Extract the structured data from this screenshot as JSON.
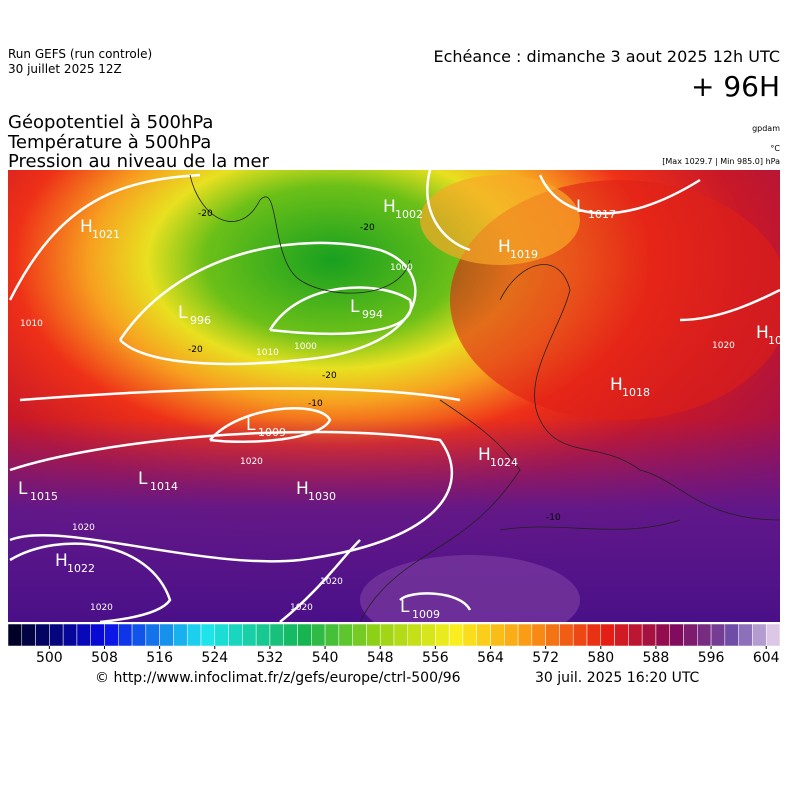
{
  "header": {
    "run": "Run GEFS (run controle)",
    "run_date": "30 juillet 2025 12Z",
    "echeance": "Echéance : dimanche 3 aout 2025 12h UTC",
    "lead": "+ 96H",
    "layers": [
      "Géopotentiel à 500hPa",
      "Température à 500hPa",
      "Pression au niveau de la mer"
    ],
    "unit_geo": "gpdam",
    "unit_temp": "°C",
    "extremes": "[Max 1029.7 | Min 985.0] hPa"
  },
  "centers": [
    {
      "letter": "H",
      "value": "1021"
    },
    {
      "letter": "H",
      "value": "1002"
    },
    {
      "letter": "L",
      "value": "1017"
    },
    {
      "letter": "H",
      "value": "1019"
    },
    {
      "letter": "L",
      "value": "996"
    },
    {
      "letter": "L",
      "value": "994"
    },
    {
      "letter": "H",
      "value": "1018"
    },
    {
      "letter": "L",
      "value": "1009"
    },
    {
      "letter": "L",
      "value": "1014"
    },
    {
      "letter": "L",
      "value": "1015"
    },
    {
      "letter": "H",
      "value": "1030"
    },
    {
      "letter": "H",
      "value": "1024"
    },
    {
      "letter": "H",
      "value": "1022"
    },
    {
      "letter": "L",
      "value": "1009"
    },
    {
      "letter": "H",
      "value": "10"
    }
  ],
  "isobar_labels": [
    "1020",
    "1020",
    "1020",
    "1020",
    "1020",
    "1010",
    "1010",
    "1000",
    "1000",
    "1020"
  ],
  "isotherm_labels": [
    "-20",
    "-20",
    "-20",
    "-10",
    "-20",
    "-10"
  ],
  "colorbar": {
    "range": [
      494,
      606
    ],
    "step": 2,
    "ticks": [
      500,
      508,
      516,
      524,
      532,
      540,
      548,
      556,
      564,
      572,
      580,
      588,
      596,
      604
    ]
  },
  "footer": {
    "url": "© http://www.infoclimat.fr/z/gefs/europe/ctrl-500/96",
    "time": "30 juil. 2025 16:20 UTC"
  }
}
